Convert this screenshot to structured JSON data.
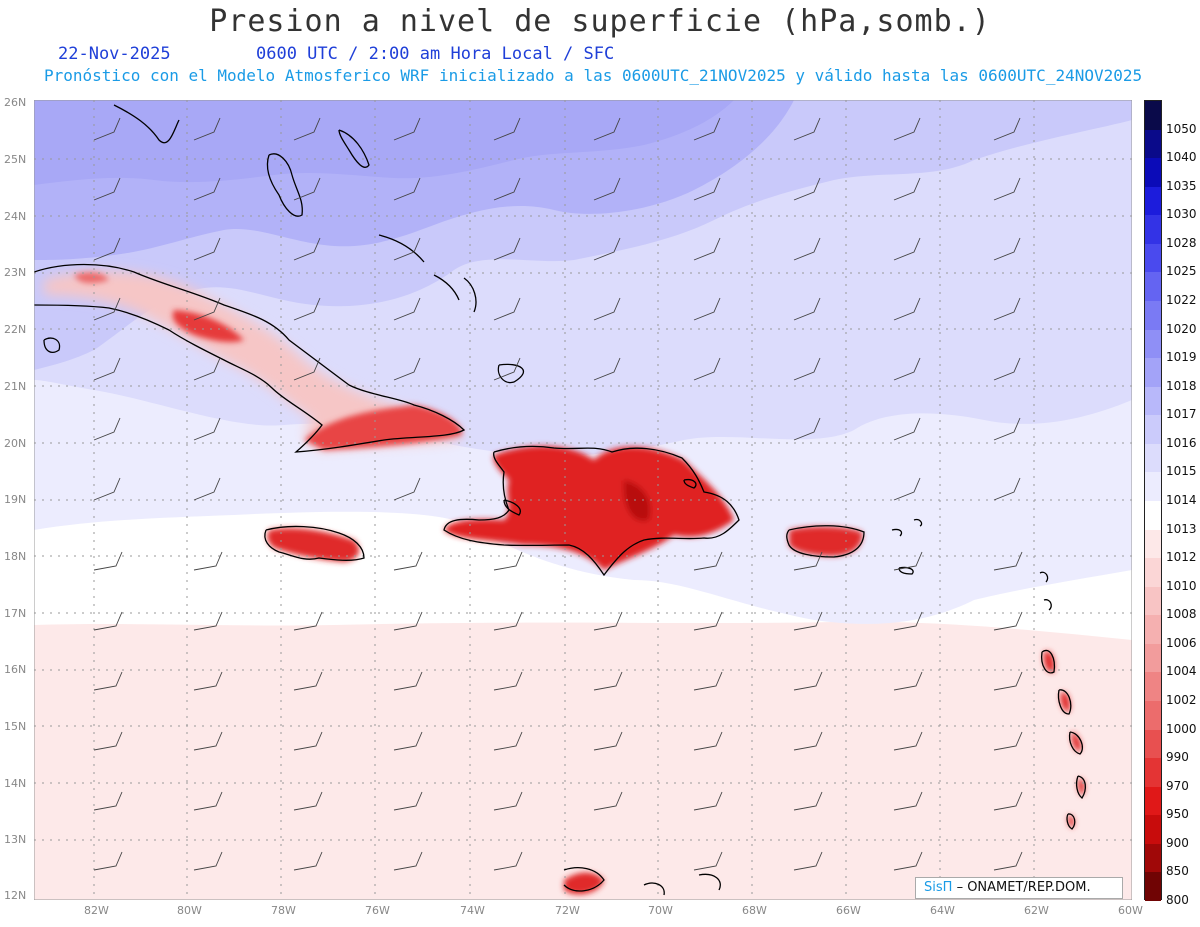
{
  "header": {
    "title": "Presion a nivel de superficie (hPa,somb.)",
    "date": "22-Nov-2025",
    "utc": "0600 UTC / 2:00 am Hora Local / SFC",
    "subtitle": "Pronóstico con el Modelo Atmosferico WRF inicializado a las 0600UTC_21NOV2025 y válido hasta las  0600UTC_24NOV2025"
  },
  "axes": {
    "lat_labels": [
      "26N",
      "25N",
      "24N",
      "23N",
      "22N",
      "21N",
      "20N",
      "19N",
      "18N",
      "17N",
      "16N",
      "15N",
      "14N",
      "13N",
      "12N"
    ],
    "lon_labels": [
      "82W",
      "80W",
      "78W",
      "76W",
      "74W",
      "72W",
      "70W",
      "68W",
      "66W",
      "64W",
      "62W",
      "60W"
    ]
  },
  "colorbar": {
    "labels": [
      "1050",
      "1040",
      "1035",
      "1030",
      "1028",
      "1025",
      "1022",
      "1020",
      "1019",
      "1018",
      "1017",
      "1016",
      "1015",
      "1014",
      "1013",
      "1012",
      "1010",
      "1008",
      "1006",
      "1004",
      "1002",
      "1000",
      "990",
      "970",
      "950",
      "900",
      "850",
      "800"
    ],
    "colors": [
      "#0a0a4a",
      "#0a0a8a",
      "#0b0bb8",
      "#1c1cdc",
      "#3333e6",
      "#4a4aee",
      "#6464f2",
      "#7a7af4",
      "#8f8ff6",
      "#a3a3f8",
      "#b8b8fa",
      "#cbcbfb",
      "#dcdcfc",
      "#ececfe",
      "#ffffff",
      "#fde8e8",
      "#fbd6d6",
      "#f8c4c4",
      "#f5b0b0",
      "#f29c9c",
      "#ef8484",
      "#ec6c6c",
      "#e85050",
      "#e43434",
      "#e01818",
      "#c80c0c",
      "#a00808",
      "#700404"
    ]
  },
  "credit": {
    "brand": "SisΠ",
    "org": "– ONAMET/REP.DOM."
  }
}
